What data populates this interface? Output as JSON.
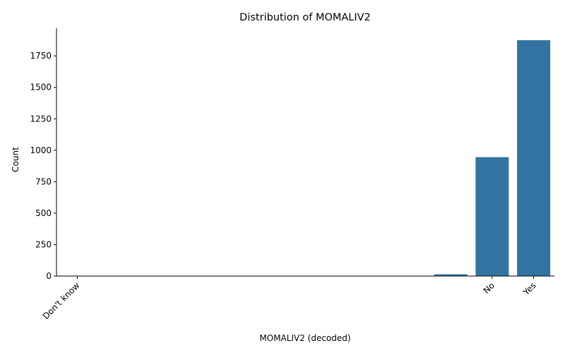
{
  "chart_data": {
    "type": "bar",
    "title": "Distribution of MOMALIV2",
    "xlabel": "MOMALIV2 (decoded)",
    "ylabel": "Count",
    "categories": [
      "Don't know",
      "",
      "",
      "",
      "",
      "",
      "",
      "",
      "",
      "",
      "No",
      "Yes"
    ],
    "values": [
      0,
      0,
      0,
      0,
      0,
      0,
      0,
      0,
      0,
      14,
      945,
      1875
    ],
    "ylim": [
      0,
      1970
    ],
    "yticks": [
      0,
      250,
      500,
      750,
      1000,
      1250,
      1500,
      1750
    ],
    "bar_color": "#3274a1",
    "grid": false,
    "legend": "none"
  }
}
